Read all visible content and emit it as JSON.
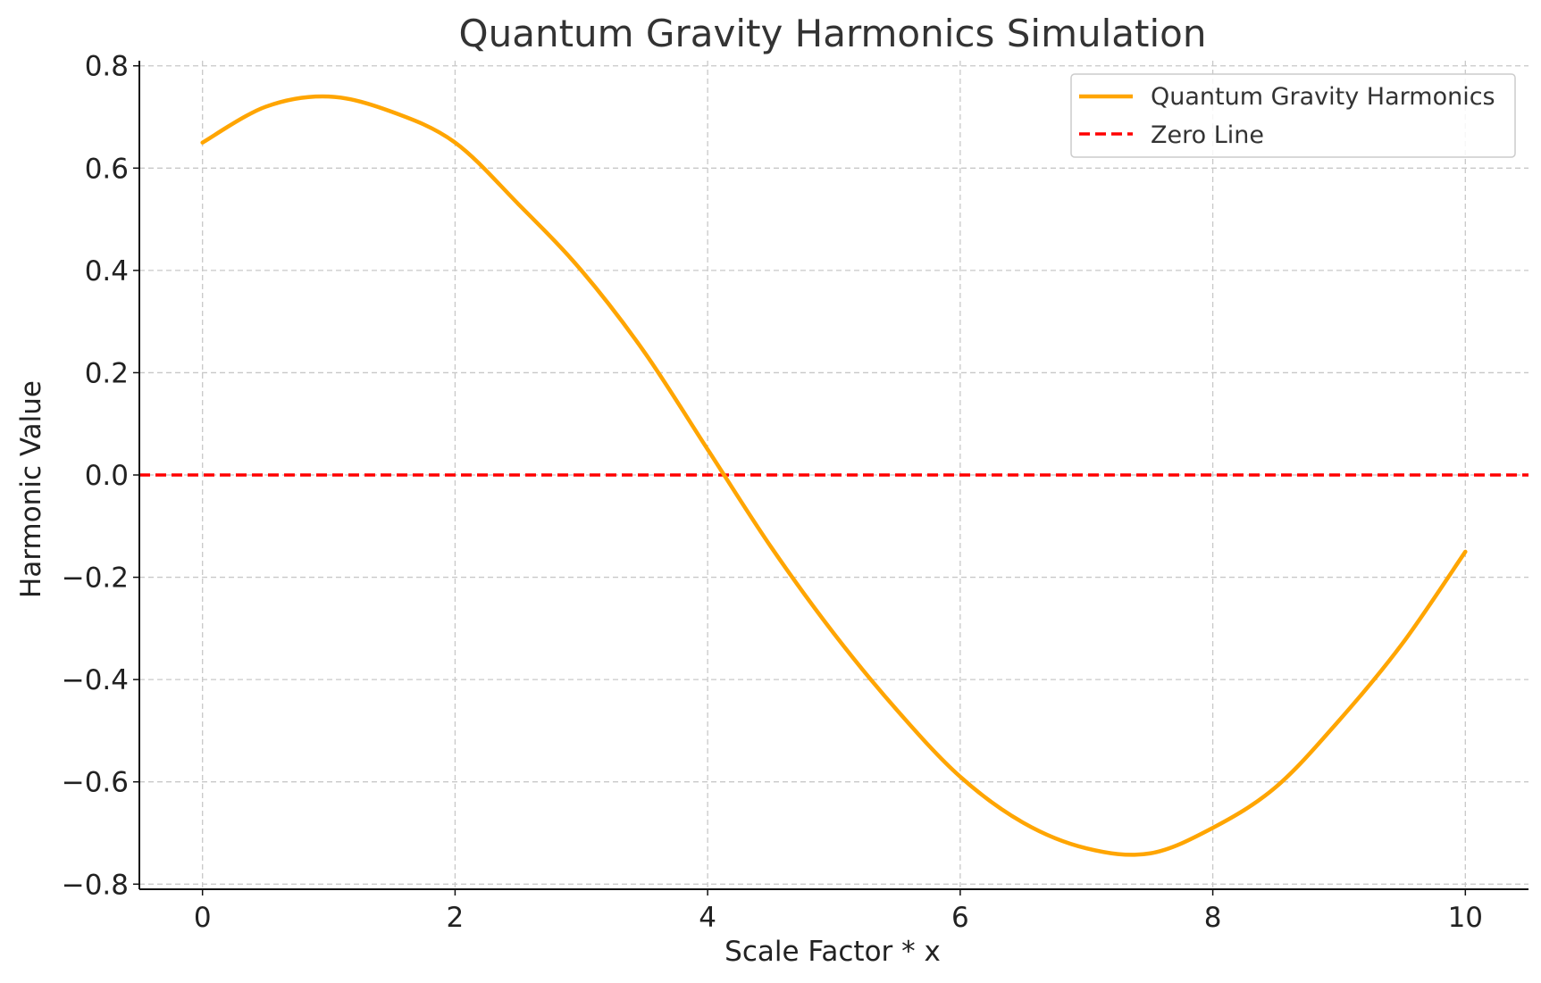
{
  "chart_data": {
    "type": "line",
    "title": "Quantum Gravity Harmonics Simulation",
    "xlabel": "Scale Factor * x",
    "ylabel": "Harmonic Value",
    "xlim": [
      -0.5,
      10.5
    ],
    "ylim": [
      -0.81,
      0.81
    ],
    "xticks": [
      0,
      2,
      4,
      6,
      8,
      10
    ],
    "xtick_labels": [
      "0",
      "2",
      "4",
      "6",
      "8",
      "10"
    ],
    "yticks": [
      -0.8,
      -0.6,
      -0.4,
      -0.2,
      0.0,
      0.2,
      0.4,
      0.6,
      0.8
    ],
    "ytick_labels": [
      "−0.8",
      "−0.6",
      "−0.4",
      "−0.2",
      "0.0",
      "0.2",
      "0.4",
      "0.6",
      "0.8"
    ],
    "grid": true,
    "legend_position": "top-right",
    "series": [
      {
        "name": "Quantum Gravity Harmonics",
        "color": "#FFA500",
        "style": "solid",
        "x": [
          0,
          0.5,
          1.0,
          1.5,
          2.0,
          2.5,
          3.0,
          3.5,
          4.0,
          4.5,
          5.0,
          5.5,
          6.0,
          6.5,
          7.0,
          7.5,
          8.0,
          8.5,
          9.0,
          9.5,
          10.0
        ],
        "y": [
          0.65,
          0.72,
          0.74,
          0.71,
          0.65,
          0.53,
          0.4,
          0.24,
          0.05,
          -0.14,
          -0.31,
          -0.46,
          -0.59,
          -0.68,
          -0.73,
          -0.74,
          -0.69,
          -0.61,
          -0.48,
          -0.33,
          -0.15
        ]
      },
      {
        "name": "Zero Line",
        "color": "#FF0000",
        "style": "dashed",
        "x": [
          -0.5,
          10.5
        ],
        "y": [
          0,
          0
        ]
      }
    ]
  }
}
